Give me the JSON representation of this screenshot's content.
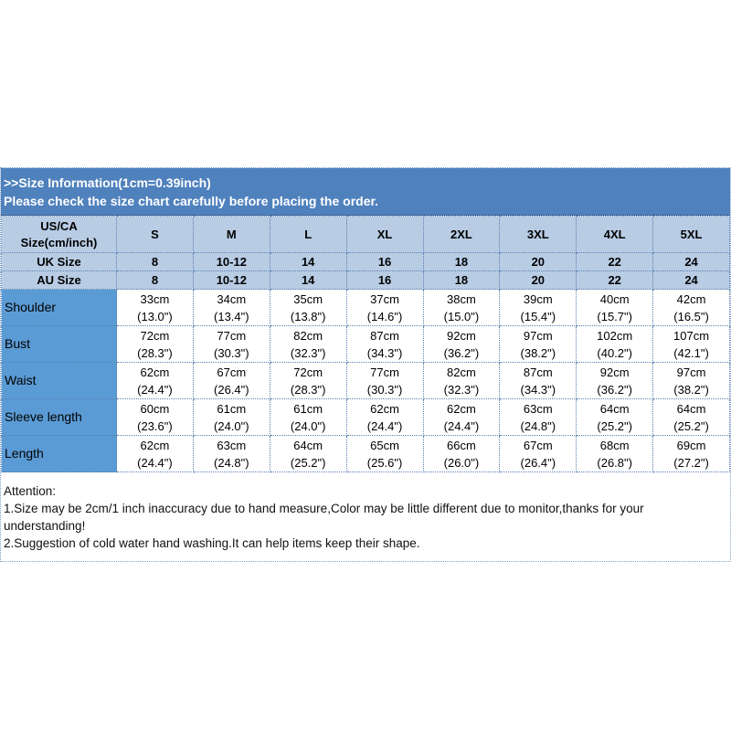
{
  "header": {
    "line1": ">>Size Information(1cm=0.39inch)",
    "line2": "Please check the size chart carefully before placing the order."
  },
  "size_rows": [
    {
      "label": "US/CA Size(cm/inch)",
      "values": [
        "S",
        "M",
        "L",
        "XL",
        "2XL",
        "3XL",
        "4XL",
        "5XL"
      ]
    },
    {
      "label": "UK Size",
      "values": [
        "8",
        "10-12",
        "14",
        "16",
        "18",
        "20",
        "22",
        "24"
      ]
    },
    {
      "label": "AU Size",
      "values": [
        "8",
        "10-12",
        "14",
        "16",
        "18",
        "20",
        "22",
        "24"
      ]
    }
  ],
  "measure_rows": [
    {
      "label": "Shoulder",
      "cm": [
        "33cm",
        "34cm",
        "35cm",
        "37cm",
        "38cm",
        "39cm",
        "40cm",
        "42cm"
      ],
      "inch": [
        "(13.0\")",
        "(13.4\")",
        "(13.8\")",
        "(14.6\")",
        "(15.0\")",
        "(15.4\")",
        "(15.7\")",
        "(16.5\")"
      ]
    },
    {
      "label": "Bust",
      "cm": [
        "72cm",
        "77cm",
        "82cm",
        "87cm",
        "92cm",
        "97cm",
        "102cm",
        "107cm"
      ],
      "inch": [
        "(28.3\")",
        "(30.3\")",
        "(32.3\")",
        "(34.3\")",
        "(36.2\")",
        "(38.2\")",
        "(40.2\")",
        "(42.1\")"
      ]
    },
    {
      "label": "Waist",
      "cm": [
        "62cm",
        "67cm",
        "72cm",
        "77cm",
        "82cm",
        "87cm",
        "92cm",
        "97cm"
      ],
      "inch": [
        "(24.4\")",
        "(26.4\")",
        "(28.3\")",
        "(30.3\")",
        "(32.3\")",
        "(34.3\")",
        "(36.2\")",
        "(38.2\")"
      ]
    },
    {
      "label": "Sleeve length",
      "cm": [
        "60cm",
        "61cm",
        "61cm",
        "62cm",
        "62cm",
        "63cm",
        "64cm",
        "64cm"
      ],
      "inch": [
        "(23.6\")",
        "(24.0\")",
        "(24.0\")",
        "(24.4\")",
        "(24.4\")",
        "(24.8\")",
        "(25.2\")",
        "(25.2\")"
      ]
    },
    {
      "label": "Length",
      "cm": [
        "62cm",
        "63cm",
        "64cm",
        "65cm",
        "66cm",
        "67cm",
        "68cm",
        "69cm"
      ],
      "inch": [
        "(24.4\")",
        "(24.8\")",
        "(25.2\")",
        "(25.6\")",
        "(26.0\")",
        "(26.4\")",
        "(26.8\")",
        "(27.2\")"
      ]
    }
  ],
  "notes": [
    "Attention:",
    "1.Size may be 2cm/1 inch inaccuracy due to hand measure,Color may be little different due to monitor,thanks for your understanding!",
    "2.Suggestion of cold water hand washing.It can help items keep their shape."
  ],
  "colors": {
    "header": "#4f81bd",
    "size_rows": "#b8cce4",
    "label_col": "#5b9bd5"
  }
}
